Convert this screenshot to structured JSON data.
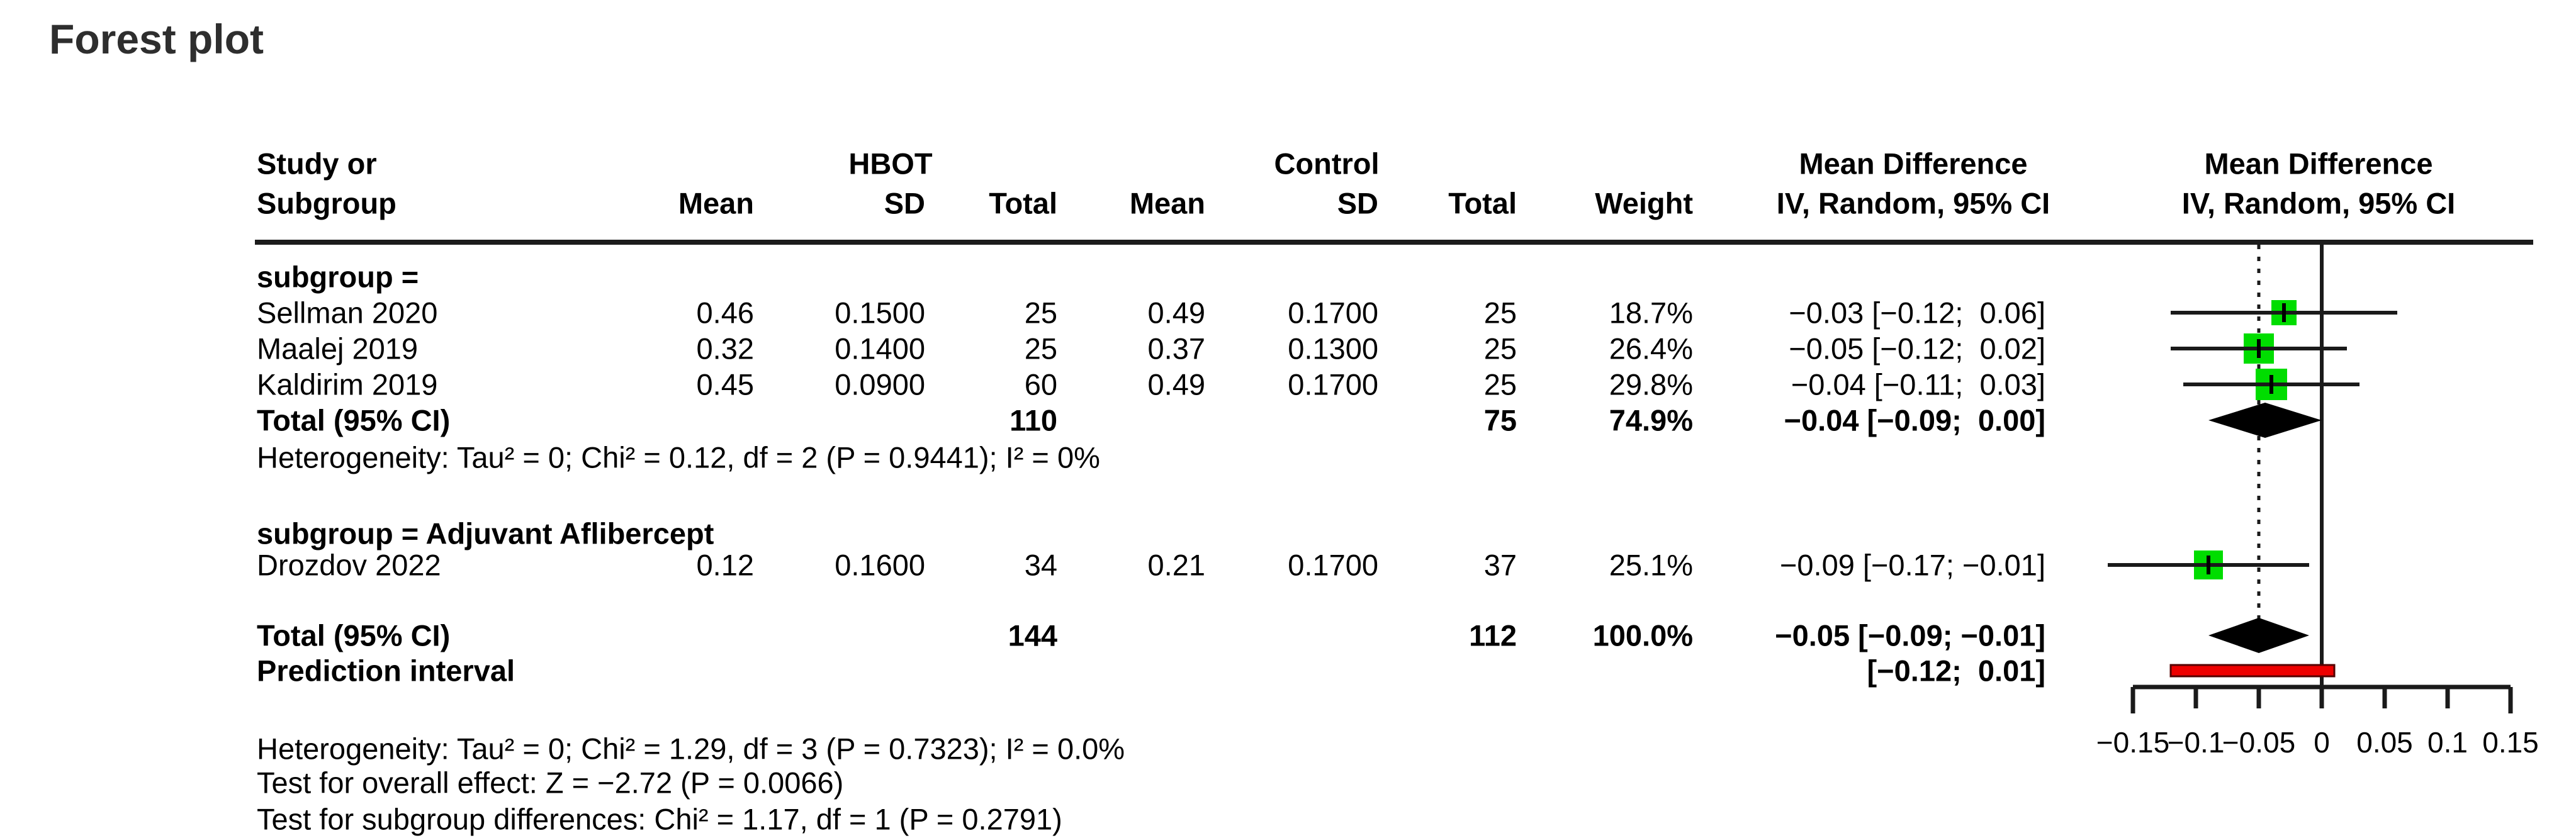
{
  "title": "Forest plot",
  "table": {
    "headers": {
      "study_line1": "Study or",
      "study_line2": "Subgroup",
      "group1": "HBOT",
      "group2": "Control",
      "mean": "Mean",
      "sd": "SD",
      "total": "Total",
      "weight": "Weight",
      "md_line1": "Mean Difference",
      "md_line2": "IV, Random, 95% CI"
    },
    "rows": [
      {
        "kind": "subgroup",
        "study": "subgroup ="
      },
      {
        "kind": "study",
        "study": "Sellman 2020",
        "mean1": "0.46",
        "sd1": "0.1500",
        "total1": "25",
        "mean2": "0.49",
        "sd2": "0.1700",
        "total2": "25",
        "weight": "18.7%",
        "md": "−0.03 [−0.12;  0.06]"
      },
      {
        "kind": "study",
        "study": "Maalej 2019",
        "mean1": "0.32",
        "sd1": "0.1400",
        "total1": "25",
        "mean2": "0.37",
        "sd2": "0.1300",
        "total2": "25",
        "weight": "26.4%",
        "md": "−0.05 [−0.12;  0.02]"
      },
      {
        "kind": "study",
        "study": "Kaldirim 2019",
        "mean1": "0.45",
        "sd1": "0.0900",
        "total1": "60",
        "mean2": "0.49",
        "sd2": "0.1700",
        "total2": "25",
        "weight": "29.8%",
        "md": "−0.04 [−0.11;  0.03]"
      },
      {
        "kind": "total",
        "study": "Total (95% CI)",
        "total1": "110",
        "total2": "75",
        "weight": "74.9%",
        "md": "−0.04 [−0.09;  0.00]"
      },
      {
        "kind": "note",
        "study": "Heterogeneity: Tau² = 0; Chi² = 0.12, df = 2 (P = 0.9441); I² = 0%"
      },
      {
        "kind": "subgroup",
        "study": "subgroup = Adjuvant Aflibercept"
      },
      {
        "kind": "study",
        "study": "Drozdov 2022",
        "mean1": "0.12",
        "sd1": "0.1600",
        "total1": "34",
        "mean2": "0.21",
        "sd2": "0.1700",
        "total2": "37",
        "weight": "25.1%",
        "md": "−0.09 [−0.17; −0.01]"
      },
      {
        "kind": "total",
        "study": "Total (95% CI)",
        "total1": "144",
        "total2": "112",
        "weight": "100.0%",
        "md": "−0.05 [−0.09; −0.01]"
      },
      {
        "kind": "total",
        "study": "Prediction interval",
        "md": "[−0.12;  0.01]"
      },
      {
        "kind": "note",
        "study": "Heterogeneity: Tau² = 0; Chi² = 1.29, df = 3 (P = 0.7323); I² = 0.0%"
      },
      {
        "kind": "note",
        "study": "Test for overall effect: Z = −2.72 (P = 0.0066)"
      },
      {
        "kind": "note",
        "study": "Test for subgroup differences: Chi² = 1.17, df = 1 (P = 0.2791)"
      }
    ]
  },
  "chart_data": {
    "type": "forest",
    "title": "Forest plot",
    "effect_measure": "Mean Difference",
    "model": "IV, Random, 95% CI",
    "axis": {
      "min": -0.15,
      "max": 0.15,
      "ticks": [
        -0.15,
        -0.1,
        -0.05,
        0,
        0.05,
        0.1,
        0.15
      ],
      "tick_labels": [
        "−0.15",
        "−0.1",
        "−0.05",
        "0",
        "0.05",
        "0.1",
        "0.15"
      ],
      "zero_line": 0,
      "dotted_reference_line": -0.05
    },
    "studies": [
      {
        "label": "Sellman 2020",
        "estimate": -0.03,
        "ci_low": -0.12,
        "ci_high": 0.06,
        "weight_pct": 18.7
      },
      {
        "label": "Maalej 2019",
        "estimate": -0.05,
        "ci_low": -0.12,
        "ci_high": 0.02,
        "weight_pct": 26.4
      },
      {
        "label": "Kaldirim 2019",
        "estimate": -0.04,
        "ci_low": -0.11,
        "ci_high": 0.03,
        "weight_pct": 29.8
      },
      {
        "label": "Drozdov 2022",
        "estimate": -0.09,
        "ci_low": -0.17,
        "ci_high": -0.01,
        "weight_pct": 25.1
      }
    ],
    "diamonds": [
      {
        "label": "Subgroup total (95% CI)",
        "estimate": -0.04,
        "ci_low": -0.09,
        "ci_high": 0.0
      },
      {
        "label": "Overall total (95% CI)",
        "estimate": -0.05,
        "ci_low": -0.09,
        "ci_high": -0.01
      }
    ],
    "prediction_interval": {
      "low": -0.12,
      "high": 0.01
    },
    "colors": {
      "square": "#00dd00",
      "marker": "#000000",
      "diamond": "#000000",
      "prediction_fill": "#ee0000",
      "prediction_stroke": "#550000",
      "line": "#1a1a1a"
    }
  }
}
